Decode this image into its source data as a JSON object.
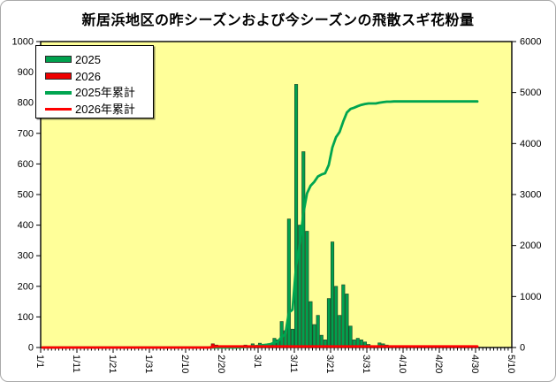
{
  "title": "新居浜地区の昨シーズンおよび今シーズンの飛散スギ花粉量",
  "legend": {
    "items": [
      {
        "label": "2025",
        "swatch": "bar",
        "color": "#00A14E"
      },
      {
        "label": "2026",
        "swatch": "bar",
        "color": "#EE0000"
      },
      {
        "label": "2025年累計",
        "swatch": "line",
        "color": "#00A550"
      },
      {
        "label": "2026年累計",
        "swatch": "line",
        "color": "#FF0000"
      }
    ]
  },
  "chart_data": {
    "type": "bar",
    "subtype": "daily bars with cumulative lines (combo bar+line, dual axis)",
    "title": "新居浜地区の昨シーズンおよび今シーズンの飛散スギ花粉量",
    "plot_background_color": "#FFFF99",
    "grid": false,
    "legend_position": "top-left inside plot",
    "x_axis": {
      "unit": "days since 1/1",
      "slots": 130,
      "tick_label_every": 10,
      "tick_labels": [
        "1/1",
        "1/11",
        "1/21",
        "1/31",
        "2/10",
        "2/20",
        "3/1",
        "3/11",
        "3/21",
        "3/31",
        "4/10",
        "4/20",
        "4/30",
        "5/10"
      ],
      "label_rotation_deg": 90
    },
    "left_axis": {
      "min": 0,
      "max": 1000,
      "step": 100,
      "tick_labels": [
        "0",
        "100",
        "200",
        "300",
        "400",
        "500",
        "600",
        "700",
        "800",
        "900",
        "1000"
      ]
    },
    "right_axis": {
      "min": 0,
      "max": 6000,
      "step": 1000,
      "tick_labels": [
        "0",
        "1000",
        "2000",
        "3000",
        "4000",
        "5000",
        "6000"
      ]
    },
    "series": [
      {
        "name": "2025",
        "type": "bar",
        "axis": "left",
        "color": "#00A14E",
        "stroke": "#1e4d2b",
        "points": [
          [
            55,
            6
          ],
          [
            56,
            8
          ],
          [
            58,
            12
          ],
          [
            60,
            14
          ],
          [
            61,
            6
          ],
          [
            62,
            10
          ],
          [
            63,
            12
          ],
          [
            64,
            30
          ],
          [
            65,
            25
          ],
          [
            66,
            85
          ],
          [
            67,
            55
          ],
          [
            68,
            420
          ],
          [
            69,
            60
          ],
          [
            70,
            860
          ],
          [
            71,
            400
          ],
          [
            72,
            640
          ],
          [
            73,
            380
          ],
          [
            74,
            150
          ],
          [
            75,
            75
          ],
          [
            76,
            105
          ],
          [
            77,
            40
          ],
          [
            78,
            25
          ],
          [
            79,
            160
          ],
          [
            80,
            345
          ],
          [
            81,
            200
          ],
          [
            82,
            105
          ],
          [
            83,
            205
          ],
          [
            84,
            175
          ],
          [
            85,
            70
          ],
          [
            86,
            25
          ],
          [
            87,
            30
          ],
          [
            88,
            25
          ],
          [
            89,
            18
          ],
          [
            90,
            10
          ],
          [
            93,
            15
          ],
          [
            94,
            12
          ],
          [
            95,
            8
          ],
          [
            97,
            5
          ]
        ]
      },
      {
        "name": "2026",
        "type": "bar",
        "axis": "left",
        "color": "#EE0000",
        "stroke": "#5a1010",
        "points": [
          [
            47,
            12
          ],
          [
            48,
            8
          ]
        ]
      },
      {
        "name": "2025年累計",
        "type": "line",
        "axis": "right",
        "color": "#00A550",
        "derived": "cumulative sum of series 2025",
        "end_index": 120,
        "final_total": 4826
      },
      {
        "name": "2026年累計",
        "type": "line",
        "axis": "right",
        "color": "#FF0000",
        "derived": "cumulative sum of series 2026",
        "end_index": 120,
        "final_total": 20
      }
    ]
  }
}
